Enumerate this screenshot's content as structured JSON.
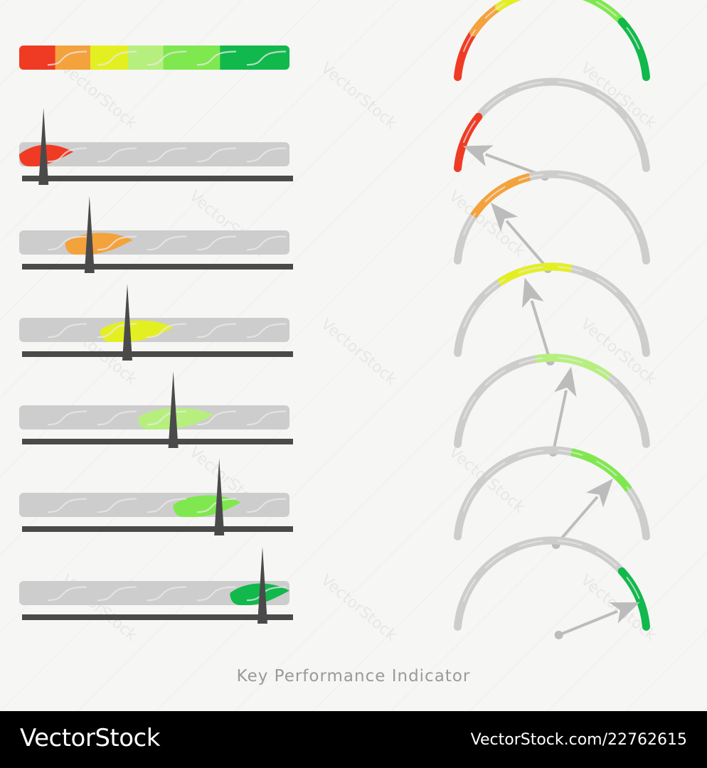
{
  "caption": "Key Performance Indicator",
  "watermark": "VectorStock",
  "footer": {
    "brand": "VectorStock",
    "image_id": "VectorStock.com/22762615"
  },
  "colors": {
    "background": "#f6f6f4",
    "track": "#cdcdcd",
    "track_highlight": "#e9e9e9",
    "pointer": "#4a4a4a",
    "needle": "#bcbcbc",
    "footer_bg": "#000000",
    "footer_text": "#ffffff",
    "caption_text": "#9a9a9a"
  },
  "scale": {
    "segments": [
      {
        "name": "red",
        "color": "#ef3b24",
        "from": 0.0,
        "to": 0.2
      },
      {
        "name": "orange",
        "color": "#f4a23c",
        "from": 0.17,
        "to": 0.42
      },
      {
        "name": "yellow",
        "color": "#e4ef22",
        "from": 0.3,
        "to": 0.57
      },
      {
        "name": "light-green",
        "color": "#b6ef7e",
        "from": 0.44,
        "to": 0.72
      },
      {
        "name": "green",
        "color": "#7fe84e",
        "from": 0.57,
        "to": 0.82
      },
      {
        "name": "dark-green",
        "color": "#11b84c",
        "from": 0.78,
        "to": 1.0
      }
    ]
  },
  "indicators": [
    {
      "level": 0.09,
      "highlight": "red"
    },
    {
      "level": 0.26,
      "highlight": "orange"
    },
    {
      "level": 0.4,
      "highlight": "yellow"
    },
    {
      "level": 0.57,
      "highlight": "light-green"
    },
    {
      "level": 0.74,
      "highlight": "green"
    },
    {
      "level": 0.9,
      "highlight": "dark-green"
    }
  ]
}
